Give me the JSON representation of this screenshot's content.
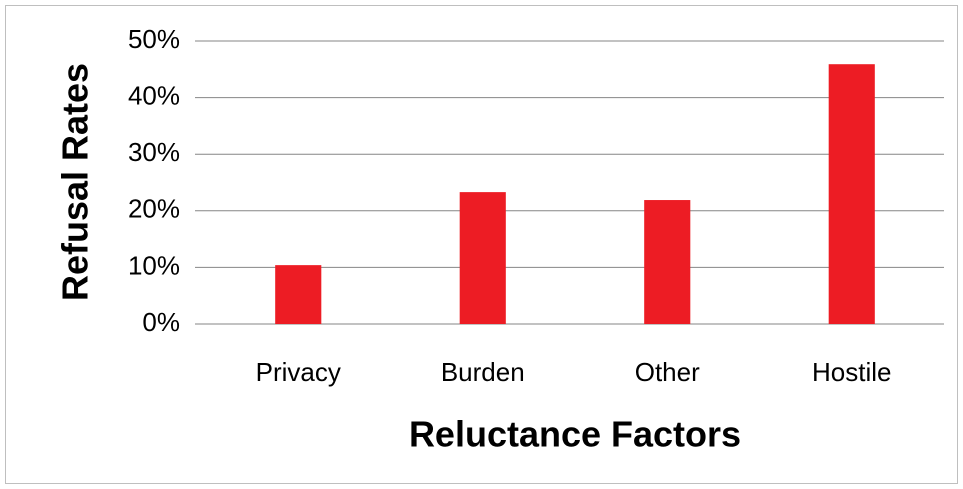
{
  "chart_data": {
    "type": "bar",
    "x_label": "Reluctance Factors",
    "y_label": "Refusal Rates",
    "categories": [
      "Privacy",
      "Burden",
      "Other",
      "Hostile"
    ],
    "values": [
      10.4,
      23.3,
      21.9,
      45.9
    ],
    "color": "#ed1c24",
    "ylim": [
      0,
      50
    ],
    "yticks": [
      {
        "value": 0,
        "label": "0%"
      },
      {
        "value": 10,
        "label": "10%"
      },
      {
        "value": 20,
        "label": "20%"
      },
      {
        "value": 30,
        "label": "30%"
      },
      {
        "value": 40,
        "label": "40%"
      },
      {
        "value": 50,
        "label": "50%"
      }
    ],
    "grid": true
  }
}
